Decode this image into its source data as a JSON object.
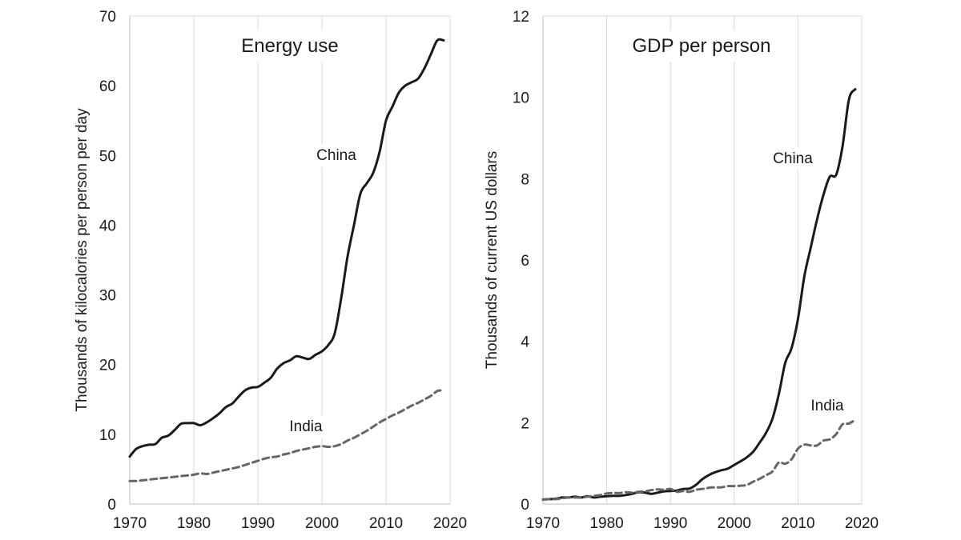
{
  "chart_data": [
    {
      "type": "line",
      "title": "Energy use",
      "xlabel": "",
      "ylabel": "Thousands of kilocalories per person per day",
      "xlim": [
        1970,
        2020
      ],
      "ylim": [
        0,
        70
      ],
      "xticks": [
        1970,
        1980,
        1990,
        2000,
        2010,
        2020
      ],
      "yticks": [
        0,
        10,
        20,
        30,
        40,
        50,
        60,
        70
      ],
      "grid": "vertical",
      "series": [
        {
          "name": "China",
          "style": "solid",
          "color": "#1a1a1a",
          "x": [
            1970,
            1971,
            1972,
            1973,
            1974,
            1975,
            1976,
            1977,
            1978,
            1979,
            1980,
            1981,
            1982,
            1983,
            1984,
            1985,
            1986,
            1987,
            1988,
            1989,
            1990,
            1991,
            1992,
            1993,
            1994,
            1995,
            1996,
            1997,
            1998,
            1999,
            2000,
            2001,
            2002,
            2003,
            2004,
            2005,
            2006,
            2007,
            2008,
            2009,
            2010,
            2011,
            2012,
            2013,
            2014,
            2015,
            2016,
            2017,
            2018,
            2019
          ],
          "values": [
            6.8,
            7.9,
            8.3,
            8.5,
            8.6,
            9.5,
            9.8,
            10.6,
            11.5,
            11.6,
            11.6,
            11.3,
            11.7,
            12.3,
            13.0,
            13.9,
            14.4,
            15.4,
            16.3,
            16.7,
            16.8,
            17.4,
            18.1,
            19.4,
            20.2,
            20.6,
            21.2,
            21.0,
            20.8,
            21.4,
            21.9,
            22.8,
            24.5,
            29.5,
            35.5,
            40.0,
            44.5,
            46.0,
            47.5,
            50.5,
            55.0,
            57.0,
            59.0,
            60.0,
            60.5,
            61.0,
            62.5,
            64.5,
            66.5,
            66.5
          ]
        },
        {
          "name": "India",
          "style": "dashed",
          "color": "#666666",
          "x": [
            1970,
            1971,
            1972,
            1973,
            1974,
            1975,
            1976,
            1977,
            1978,
            1979,
            1980,
            1981,
            1982,
            1983,
            1984,
            1985,
            1986,
            1987,
            1988,
            1989,
            1990,
            1991,
            1992,
            1993,
            1994,
            1995,
            1996,
            1997,
            1998,
            1999,
            2000,
            2001,
            2002,
            2003,
            2004,
            2005,
            2006,
            2007,
            2008,
            2009,
            2010,
            2011,
            2012,
            2013,
            2014,
            2015,
            2016,
            2017,
            2018,
            2019
          ],
          "values": [
            3.3,
            3.3,
            3.4,
            3.5,
            3.6,
            3.7,
            3.8,
            3.9,
            4.0,
            4.1,
            4.2,
            4.4,
            4.3,
            4.5,
            4.7,
            4.9,
            5.1,
            5.3,
            5.6,
            5.9,
            6.2,
            6.5,
            6.7,
            6.8,
            7.1,
            7.3,
            7.6,
            7.8,
            8.0,
            8.2,
            8.3,
            8.2,
            8.3,
            8.6,
            9.1,
            9.5,
            10.0,
            10.5,
            11.1,
            11.7,
            12.2,
            12.7,
            13.1,
            13.6,
            14.1,
            14.5,
            15.0,
            15.5,
            16.2,
            16.3
          ]
        }
      ]
    },
    {
      "type": "line",
      "title": "GDP per person",
      "xlabel": "",
      "ylabel": "Thousands of current US dollars",
      "xlim": [
        1970,
        2020
      ],
      "ylim": [
        0,
        12
      ],
      "xticks": [
        1970,
        1980,
        1990,
        2000,
        2010,
        2020
      ],
      "yticks": [
        0,
        2,
        4,
        6,
        8,
        10,
        12
      ],
      "grid": "vertical",
      "series": [
        {
          "name": "China",
          "style": "solid",
          "color": "#1a1a1a",
          "x": [
            1970,
            1971,
            1972,
            1973,
            1974,
            1975,
            1976,
            1977,
            1978,
            1979,
            1980,
            1981,
            1982,
            1983,
            1984,
            1985,
            1986,
            1987,
            1988,
            1989,
            1990,
            1991,
            1992,
            1993,
            1994,
            1995,
            1996,
            1997,
            1998,
            1999,
            2000,
            2001,
            2002,
            2003,
            2004,
            2005,
            2006,
            2007,
            2008,
            2009,
            2010,
            2011,
            2012,
            2013,
            2014,
            2015,
            2016,
            2017,
            2018,
            2019
          ],
          "values": [
            0.11,
            0.12,
            0.13,
            0.16,
            0.16,
            0.18,
            0.16,
            0.19,
            0.16,
            0.18,
            0.19,
            0.2,
            0.2,
            0.22,
            0.25,
            0.29,
            0.28,
            0.25,
            0.28,
            0.31,
            0.32,
            0.33,
            0.37,
            0.38,
            0.47,
            0.61,
            0.71,
            0.78,
            0.83,
            0.87,
            0.96,
            1.05,
            1.15,
            1.29,
            1.51,
            1.75,
            2.1,
            2.7,
            3.47,
            3.83,
            4.55,
            5.6,
            6.3,
            7.0,
            7.6,
            8.05,
            8.1,
            8.8,
            9.95,
            10.2
          ]
        },
        {
          "name": "India",
          "style": "dashed",
          "color": "#666666",
          "x": [
            1970,
            1971,
            1972,
            1973,
            1974,
            1975,
            1976,
            1977,
            1978,
            1979,
            1980,
            1981,
            1982,
            1983,
            1984,
            1985,
            1986,
            1987,
            1988,
            1989,
            1990,
            1991,
            1992,
            1993,
            1994,
            1995,
            1996,
            1997,
            1998,
            1999,
            2000,
            2001,
            2002,
            2003,
            2004,
            2005,
            2006,
            2007,
            2008,
            2009,
            2010,
            2011,
            2012,
            2013,
            2014,
            2015,
            2016,
            2017,
            2018,
            2019
          ],
          "values": [
            0.11,
            0.12,
            0.12,
            0.14,
            0.16,
            0.16,
            0.16,
            0.18,
            0.2,
            0.22,
            0.26,
            0.27,
            0.27,
            0.29,
            0.28,
            0.3,
            0.31,
            0.34,
            0.36,
            0.35,
            0.37,
            0.3,
            0.32,
            0.3,
            0.35,
            0.37,
            0.4,
            0.41,
            0.41,
            0.44,
            0.44,
            0.45,
            0.47,
            0.55,
            0.62,
            0.71,
            0.8,
            1.02,
            0.99,
            1.1,
            1.36,
            1.46,
            1.44,
            1.44,
            1.56,
            1.59,
            1.72,
            1.96,
            1.98,
            2.07
          ]
        }
      ]
    }
  ]
}
